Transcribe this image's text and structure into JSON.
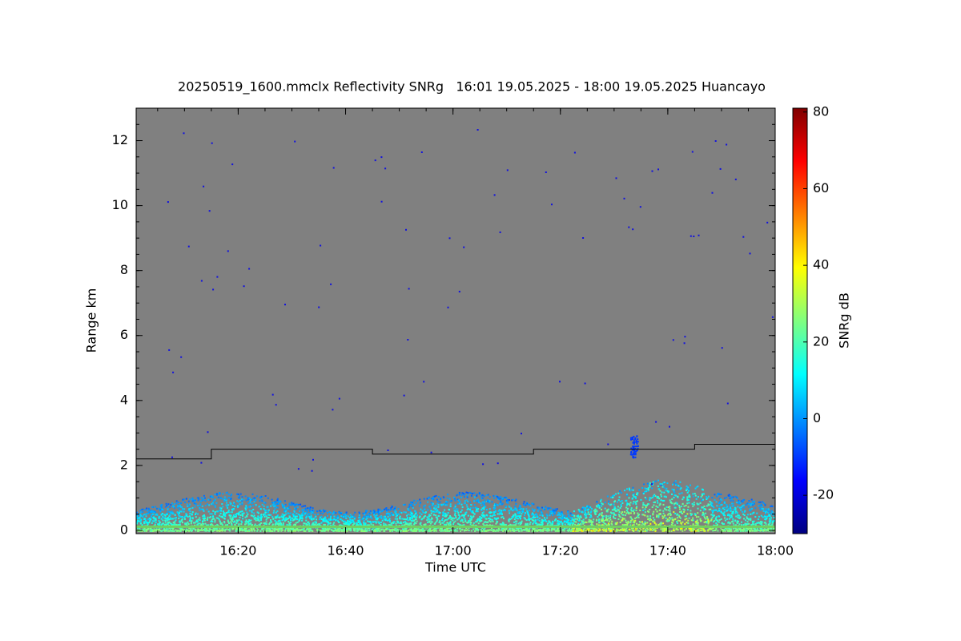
{
  "chart_data": {
    "type": "heatmap",
    "title": "20250519_1600.mmclx Reflectivity SNRg   16:01 19.05.2025 - 18:00 19.05.2025 Huancayo",
    "x_label": "Time UTC",
    "y_label": "Range km",
    "colorbar_label": "SNRg dB",
    "background": "#808080",
    "colormap": "jet",
    "xlim": [
      "16:01",
      "18:00"
    ],
    "xticks": [
      "16:20",
      "16:40",
      "17:00",
      "17:20",
      "17:40",
      "18:00"
    ],
    "ylim": [
      -0.1,
      13
    ],
    "yticks": [
      0,
      2,
      4,
      6,
      8,
      10,
      12
    ],
    "clim": [
      -30,
      81
    ],
    "cticks": [
      -20,
      0,
      20,
      40,
      60,
      80
    ],
    "series": [
      {
        "color": "#000000",
        "x": [
          "16:01",
          "16:15",
          "16:15",
          "16:45",
          "16:45",
          "17:15",
          "17:15",
          "17:45",
          "17:45",
          "18:00"
        ],
        "values": [
          2.2,
          2.2,
          2.5,
          2.5,
          2.35,
          2.35,
          2.5,
          2.5,
          2.65,
          2.65
        ]
      }
    ]
  }
}
